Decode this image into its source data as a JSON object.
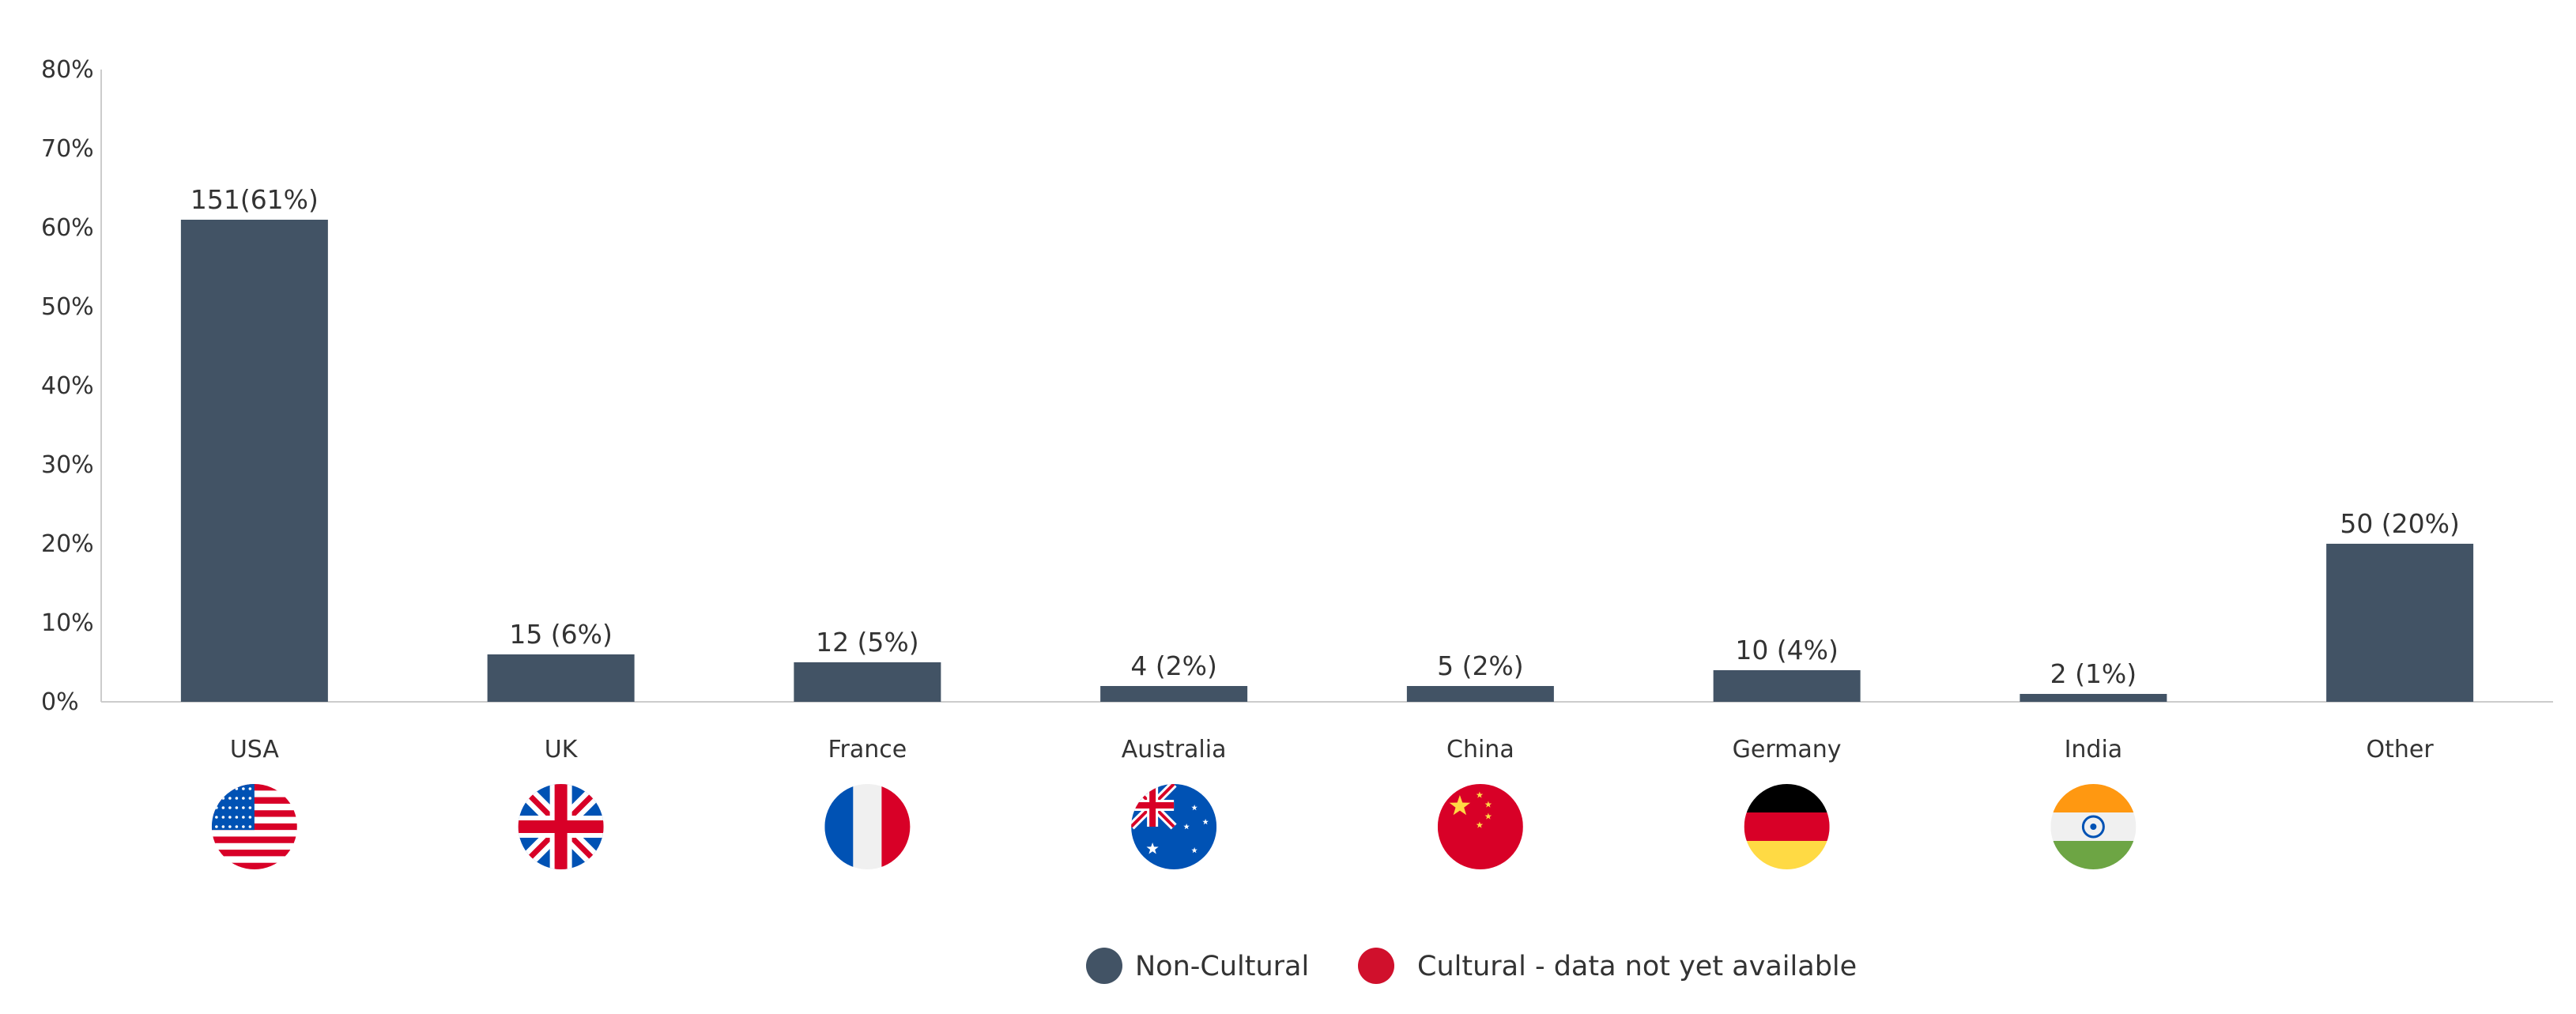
{
  "chart_data": {
    "type": "bar",
    "categories": [
      "USA",
      "UK",
      "France",
      "Australia",
      "China",
      "Germany",
      "India",
      "Other"
    ],
    "values": [
      61,
      6,
      5,
      2,
      2,
      4,
      1,
      20
    ],
    "data_labels": [
      "151(61%)",
      "15 (6%)",
      "12 (5%)",
      "4 (2%)",
      "5 (2%)",
      "10 (4%)",
      "2 (1%)",
      "50 (20%)"
    ],
    "flags": [
      "usa-flag-icon",
      "uk-flag-icon",
      "france-flag-icon",
      "australia-flag-icon",
      "china-flag-icon",
      "germany-flag-icon",
      "india-flag-icon",
      null
    ],
    "yticks": [
      "0%",
      "10%",
      "20%",
      "30%",
      "40%",
      "50%",
      "60%",
      "70%",
      "80%"
    ],
    "ylim": [
      0,
      80
    ],
    "grid": false,
    "legend_position": "bottom-center",
    "legend": [
      {
        "label": "Non-Cultural",
        "color": "#425365"
      },
      {
        "label": "Cultural - data not yet available",
        "color": "#d0102c"
      }
    ],
    "bar_color": "#425365"
  }
}
